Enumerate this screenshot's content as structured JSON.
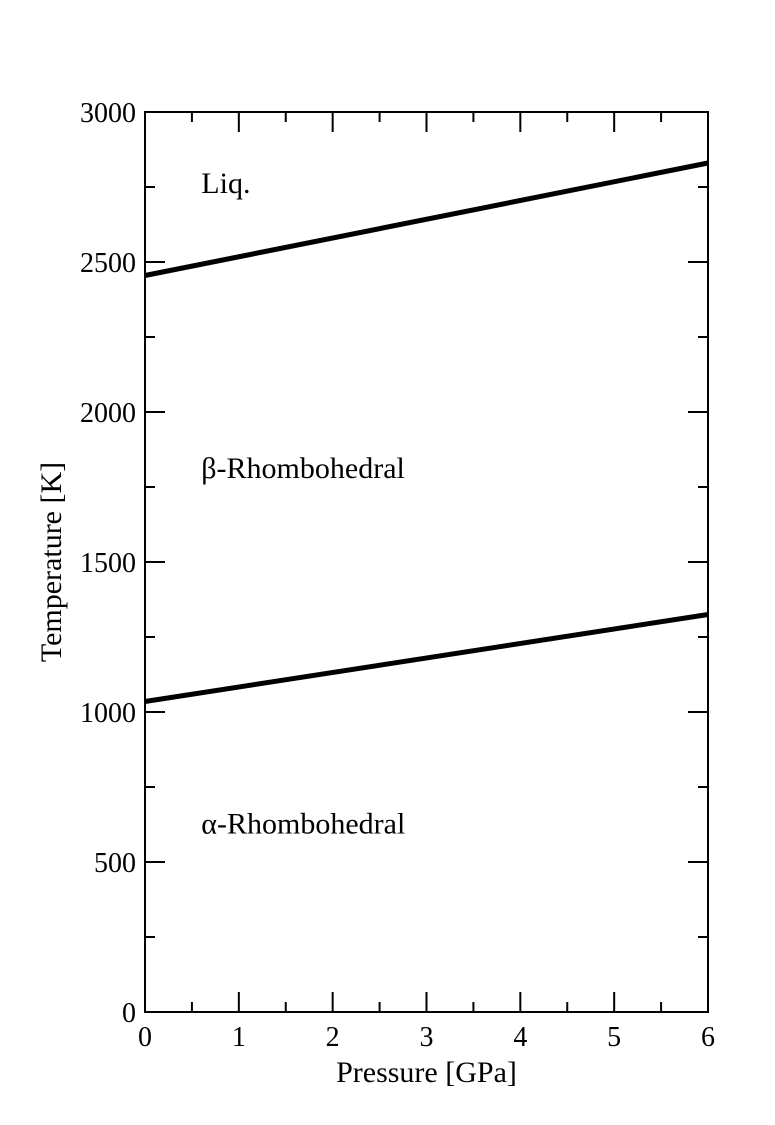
{
  "chart_data": {
    "type": "line",
    "title": "",
    "xlabel": "Pressure [GPa]",
    "ylabel": "Temperature [K]",
    "xlim": [
      0,
      6
    ],
    "ylim": [
      0,
      3000
    ],
    "x_ticks": [
      "0",
      "1",
      "2",
      "3",
      "4",
      "5",
      "6"
    ],
    "y_ticks": [
      "0",
      "500",
      "1000",
      "1500",
      "2000",
      "2500",
      "3000"
    ],
    "grid": false,
    "series": [
      {
        "x": [
          0,
          6
        ],
        "y": [
          2455,
          2830
        ],
        "color": "#000000"
      },
      {
        "x": [
          0,
          6
        ],
        "y": [
          1035,
          1325
        ],
        "color": "#000000"
      }
    ],
    "annotations": [
      {
        "text": "Liq.",
        "x": 0.6,
        "y": 2730
      },
      {
        "text": "β-Rhombohedral",
        "x": 0.6,
        "y": 1780
      },
      {
        "text": "α-Rhombohedral",
        "x": 0.6,
        "y": 595
      }
    ]
  }
}
